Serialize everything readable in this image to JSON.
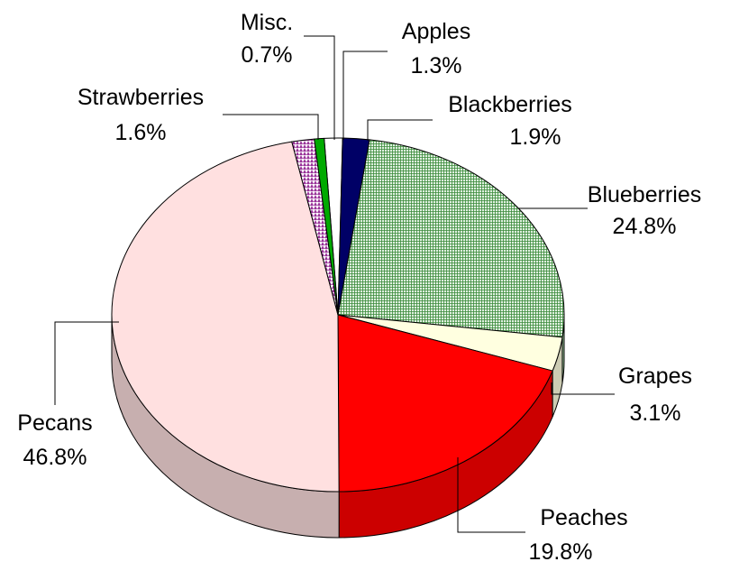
{
  "chart_data": {
    "type": "pie",
    "style": "3d",
    "title": "",
    "slices": [
      {
        "name": "Apples",
        "value": 1.3,
        "label": "1.3%",
        "color": "#ffffff",
        "pattern": "none"
      },
      {
        "name": "Blackberries",
        "value": 1.9,
        "label": "1.9%",
        "color": "#000066",
        "pattern": "none"
      },
      {
        "name": "Blueberries",
        "value": 24.8,
        "label": "24.8%",
        "color": "#b9dcb9",
        "pattern": "grid-green"
      },
      {
        "name": "Grapes",
        "value": 3.1,
        "label": "3.1%",
        "color": "#ffffe0",
        "pattern": "none"
      },
      {
        "name": "Peaches",
        "value": 19.8,
        "label": "19.8%",
        "color": "#ff0000",
        "pattern": "none"
      },
      {
        "name": "Pecans",
        "value": 46.8,
        "label": "46.8%",
        "color": "#ffe0e0",
        "pattern": "none"
      },
      {
        "name": "Strawberries",
        "value": 1.6,
        "label": "1.6%",
        "color": "#cc66cc",
        "pattern": "diamond-purple"
      },
      {
        "name": "Misc.",
        "value": 0.7,
        "label": "0.7%",
        "color": "#00aa00",
        "pattern": "none"
      }
    ],
    "legend": "none"
  }
}
